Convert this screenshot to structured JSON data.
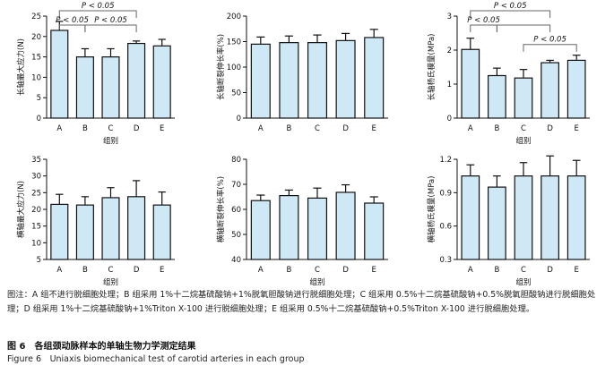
{
  "figure": {
    "note": "图注：A 组不进行脱细胞处理；B 组采用 1%十二烷基硫酸钠+1%脱氧胆酸钠进行脱细胞处理；C 组采用 0.5%十二烷基硫酸钠+0.5%脱氧胆酸钠进行脱细胞处理；D 组采用 1%十二烷基硫酸钠+1%Triton X-100 进行脱细胞处理；E 组采用 0.5%十二烷基硫酸钠+0.5%Triton X-100 进行脱细胞处理。",
    "caption_cn": "图 6　各组颈动脉样本的单轴生物力学测定结果",
    "caption_en": "Figure 6　Uniaxis biomechanical test of carotid arteries in each group"
  },
  "colors": {
    "bar_fill": "#cfe8f6",
    "bar_stroke": "#111111",
    "axis": "#111111"
  },
  "chart_data": [
    {
      "type": "bar",
      "categories": [
        "A",
        "B",
        "C",
        "D",
        "E"
      ],
      "values": [
        21.5,
        15,
        15,
        18.3,
        17.7
      ],
      "errors": [
        2.2,
        2,
        2,
        0.6,
        1.6
      ],
      "ylabel": "长轴最大应力(N)",
      "xlabel": "组别",
      "ylim": [
        0,
        25
      ],
      "yticks": [
        0,
        5,
        10,
        15,
        20,
        25
      ],
      "brackets": [
        {
          "from": 0,
          "to": 3,
          "text": "P < 0.05",
          "level": 2
        },
        {
          "from": 0,
          "to": 1,
          "text": "P < 0.05",
          "level": 1
        },
        {
          "from": 1,
          "to": 3,
          "text": "P < 0.05",
          "level": 1
        }
      ]
    },
    {
      "type": "bar",
      "categories": [
        "A",
        "B",
        "C",
        "D",
        "E"
      ],
      "values": [
        145,
        148,
        148,
        152,
        158
      ],
      "errors": [
        14,
        13,
        15,
        14,
        16
      ],
      "ylabel": "长轴断裂伸长率(%)",
      "xlabel": "",
      "ylim": [
        0,
        200
      ],
      "yticks": [
        0,
        50,
        100,
        150,
        200
      ],
      "brackets": []
    },
    {
      "type": "bar",
      "categories": [
        "A",
        "B",
        "C",
        "D",
        "E"
      ],
      "values": [
        2.02,
        1.25,
        1.18,
        1.63,
        1.7
      ],
      "errors": [
        0.33,
        0.22,
        0.25,
        0.07,
        0.15
      ],
      "ylabel": "长轴杨氏模量(MPa)",
      "xlabel": "组别",
      "ylim": [
        0,
        3
      ],
      "yticks": [
        0,
        1,
        2,
        3
      ],
      "brackets": [
        {
          "from": 0,
          "to": 3,
          "text": "P < 0.05",
          "level": 2
        },
        {
          "from": 0,
          "to": 1,
          "text": "P < 0.05",
          "level": 1
        },
        {
          "from": 1,
          "to": 3,
          "text": "",
          "level": 1
        },
        {
          "from": 2,
          "to": 4,
          "text": "P < 0.05",
          "level": 0
        }
      ]
    },
    {
      "type": "bar",
      "categories": [
        "A",
        "B",
        "C",
        "D",
        "E"
      ],
      "values": [
        21.5,
        21.3,
        23.5,
        23.8,
        21.3
      ],
      "errors": [
        3,
        2.5,
        3,
        4.8,
        3.9
      ],
      "ylabel": "横轴最大应力(N)",
      "xlabel": "组别",
      "ylim": [
        5,
        35
      ],
      "yticks": [
        5,
        10,
        15,
        20,
        25,
        30,
        35
      ],
      "brackets": []
    },
    {
      "type": "bar",
      "categories": [
        "A",
        "B",
        "C",
        "D",
        "E"
      ],
      "values": [
        63.5,
        65.5,
        64.5,
        66.8,
        62.5
      ],
      "errors": [
        2.2,
        2.2,
        4,
        3,
        2.5
      ],
      "ylabel": "横轴断裂伸长率(%)",
      "xlabel": "组别",
      "ylim": [
        40,
        80
      ],
      "yticks": [
        40,
        50,
        60,
        70,
        80
      ],
      "brackets": []
    },
    {
      "type": "bar",
      "categories": [
        "A",
        "B",
        "C",
        "D",
        "E"
      ],
      "values": [
        1.05,
        0.95,
        1.05,
        1.05,
        1.05
      ],
      "errors": [
        0.1,
        0.1,
        0.12,
        0.18,
        0.14
      ],
      "ylabel": "横轴杨氏模量(MPa)",
      "xlabel": "组别",
      "ylim": [
        0.3,
        1.2
      ],
      "yticks": [
        0.3,
        0.6,
        0.9,
        1.2
      ],
      "brackets": []
    }
  ]
}
